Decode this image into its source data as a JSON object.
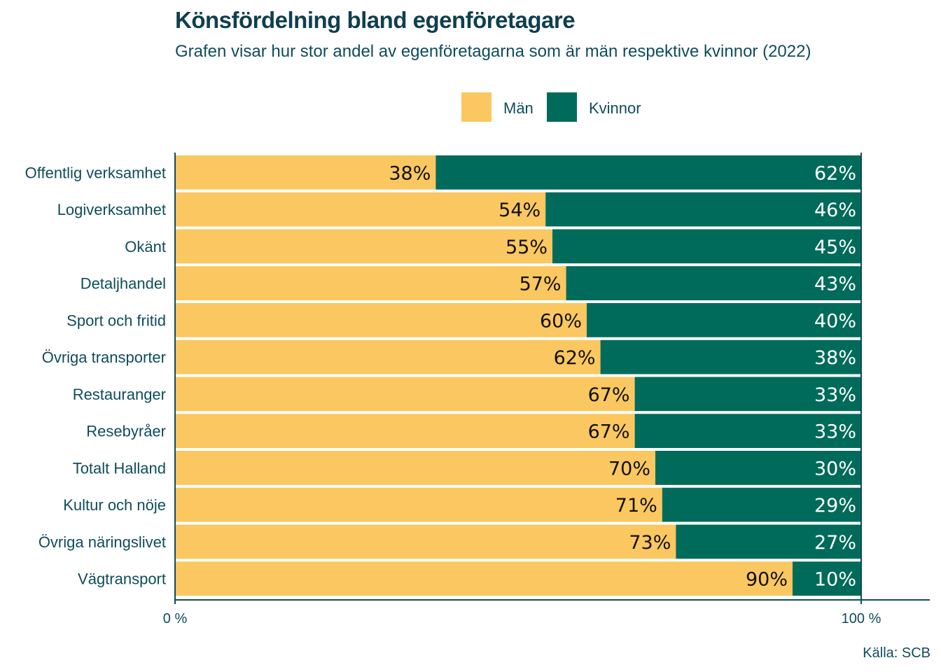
{
  "title": "Könsfördelning bland egenföretagare",
  "subtitle": "Grafen visar hur stor andel av egenföretagarna som är män respektive kvinnor (2022)",
  "source": "Källa: SCB",
  "colors": {
    "man": "#fac760",
    "kvinnor": "#006b5a",
    "axis": "#0f4c5c"
  },
  "chart_data": {
    "type": "bar",
    "orientation": "horizontal",
    "stacked": true,
    "categories": [
      "Offentlig verksamhet",
      "Logiverksamhet",
      "Okänt",
      "Detaljhandel",
      "Sport och fritid",
      "Övriga transporter",
      "Restauranger",
      "Resebyråer",
      "Totalt Halland",
      "Kultur och nöje",
      "Övriga näringslivet",
      "Vägtransport"
    ],
    "series": [
      {
        "name": "Män",
        "values": [
          38,
          54,
          55,
          57,
          60,
          62,
          67,
          67,
          70,
          71,
          73,
          90
        ],
        "labels": [
          "38%",
          "54%",
          "55%",
          "57%",
          "60%",
          "62%",
          "67%",
          "67%",
          "70%",
          "71%",
          "73%",
          "90%"
        ]
      },
      {
        "name": "Kvinnor",
        "values": [
          62,
          46,
          45,
          43,
          40,
          38,
          33,
          33,
          30,
          29,
          27,
          10
        ],
        "labels": [
          "62%",
          "46%",
          "45%",
          "43%",
          "40%",
          "38%",
          "33%",
          "33%",
          "30%",
          "29%",
          "27%",
          "10%"
        ]
      }
    ],
    "xlim": [
      0,
      110
    ],
    "x_ticks": [
      0,
      100
    ],
    "x_tick_labels": [
      "0 %",
      "100 %"
    ],
    "legend_position": "top",
    "grid": false
  }
}
